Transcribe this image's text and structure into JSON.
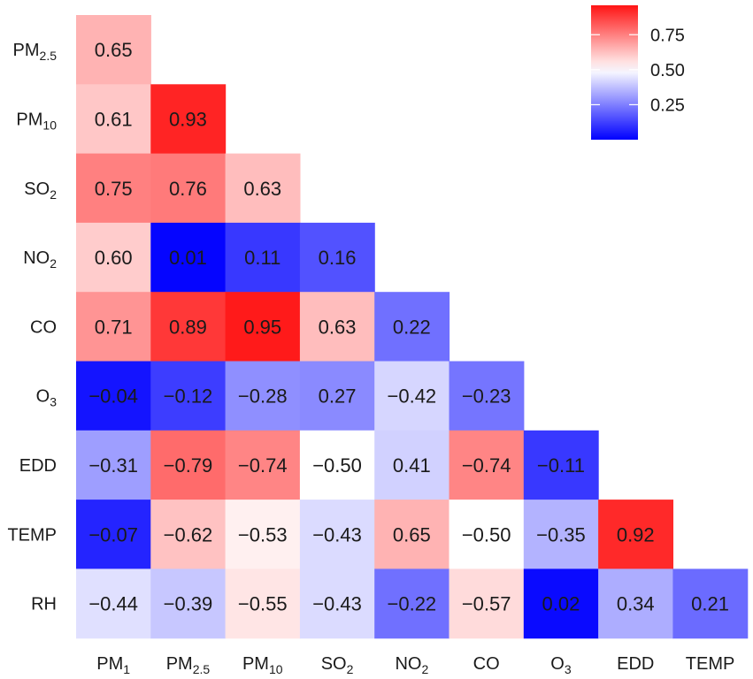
{
  "chart_data": {
    "type": "heatmap",
    "title": "",
    "xlabel": "",
    "ylabel": "",
    "x_categories": [
      {
        "base": "PM",
        "sub": "1"
      },
      {
        "base": "PM",
        "sub": "2.5"
      },
      {
        "base": "PM",
        "sub": "10"
      },
      {
        "base": "SO",
        "sub": "2"
      },
      {
        "base": "NO",
        "sub": "2"
      },
      {
        "base": "CO",
        "sub": ""
      },
      {
        "base": "O",
        "sub": "3"
      },
      {
        "base": "EDD",
        "sub": ""
      },
      {
        "base": "TEMP",
        "sub": ""
      }
    ],
    "y_categories": [
      {
        "base": "PM",
        "sub": "2.5"
      },
      {
        "base": "PM",
        "sub": "10"
      },
      {
        "base": "SO",
        "sub": "2"
      },
      {
        "base": "NO",
        "sub": "2"
      },
      {
        "base": "CO",
        "sub": ""
      },
      {
        "base": "O",
        "sub": "3"
      },
      {
        "base": "EDD",
        "sub": ""
      },
      {
        "base": "TEMP",
        "sub": ""
      },
      {
        "base": "RH",
        "sub": ""
      }
    ],
    "values": [
      [
        "0.65"
      ],
      [
        "0.61",
        "0.93"
      ],
      [
        "0.75",
        "0.76",
        "0.63"
      ],
      [
        "0.60",
        "0.01",
        "0.11",
        "0.16"
      ],
      [
        "0.71",
        "0.89",
        "0.95",
        "0.63",
        "0.22"
      ],
      [
        "−0.04",
        "−0.12",
        "−0.28",
        "0.27",
        "−0.42",
        "−0.23"
      ],
      [
        "−0.31",
        "−0.79",
        "−0.74",
        "−0.50",
        "0.41",
        "−0.74",
        "−0.11"
      ],
      [
        "−0.07",
        "−0.62",
        "−0.53",
        "−0.43",
        "0.65",
        "−0.50",
        "−0.35",
        "0.92"
      ],
      [
        "−0.44",
        "−0.39",
        "−0.55",
        "−0.43",
        "−0.22",
        "−0.57",
        "0.02",
        "0.34",
        "0.21"
      ]
    ],
    "color_values": [
      [
        0.65
      ],
      [
        0.61,
        0.93
      ],
      [
        0.75,
        0.76,
        0.63
      ],
      [
        0.6,
        0.01,
        0.11,
        0.16
      ],
      [
        0.71,
        0.89,
        0.95,
        0.63,
        0.22
      ],
      [
        0.04,
        0.12,
        0.28,
        0.27,
        0.42,
        0.23
      ],
      [
        0.31,
        0.79,
        0.74,
        0.5,
        0.41,
        0.74,
        0.11
      ],
      [
        0.07,
        0.62,
        0.53,
        0.43,
        0.65,
        0.5,
        0.35,
        0.92
      ],
      [
        0.44,
        0.39,
        0.55,
        0.43,
        0.22,
        0.57,
        0.02,
        0.34,
        0.21
      ]
    ],
    "color_scale": {
      "low": "#0000ff",
      "mid": "#ffffff",
      "high": "#ff0000",
      "range": [
        0,
        1
      ],
      "midpoint": 0.5,
      "legend_range": [
        0.0,
        0.96
      ],
      "legend_ticks": [
        "0.75",
        "0.50",
        "0.25"
      ],
      "legend_tick_values": [
        0.75,
        0.5,
        0.25
      ]
    },
    "legend_placement": "top-right",
    "grid": false
  }
}
